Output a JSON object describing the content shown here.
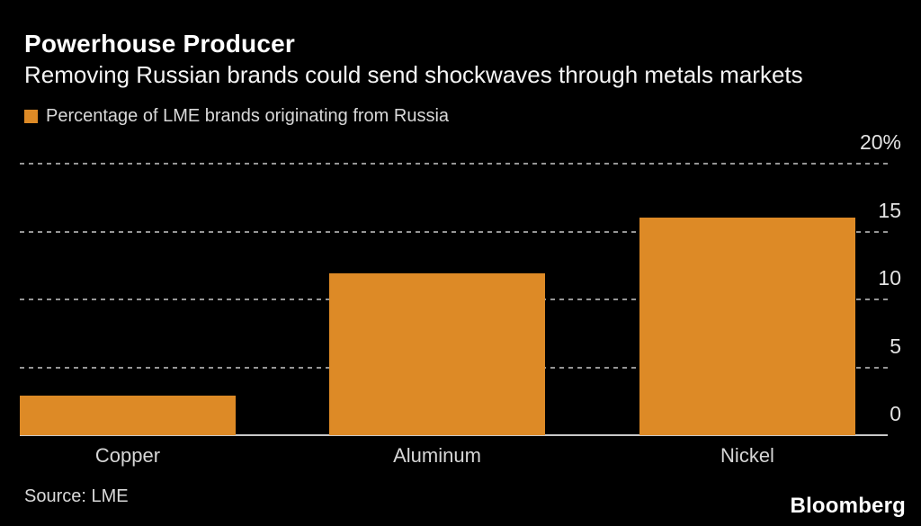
{
  "header": {
    "title": "Powerhouse Producer",
    "subtitle": "Removing Russian brands could send shockwaves through metals markets"
  },
  "legend": {
    "label": "Percentage of LME brands originating from Russia",
    "swatch_color": "#dd8a26"
  },
  "footer": {
    "source": "Source: LME",
    "brand": "Bloomberg"
  },
  "colors": {
    "background": "#000000",
    "bar": "#dd8a26",
    "title_text": "#ffffff",
    "axis_text": "#e3e3e3",
    "gridline": "#969696",
    "baseline": "#c9c9c9"
  },
  "chart_data": {
    "type": "bar",
    "title": "Powerhouse Producer",
    "subtitle": "Removing Russian brands could send shockwaves through metals markets",
    "legend_entries": [
      "Percentage of LME brands originating from Russia"
    ],
    "categories": [
      "Copper",
      "Aluminum",
      "Nickel"
    ],
    "values": [
      2.9,
      11.9,
      16
    ],
    "unit": "%",
    "ylim": [
      0,
      20
    ],
    "yticks": [
      {
        "value": 20,
        "label": "20%"
      },
      {
        "value": 15,
        "label": "15"
      },
      {
        "value": 10,
        "label": "10"
      },
      {
        "value": 5,
        "label": "5"
      },
      {
        "value": 0,
        "label": "0"
      }
    ],
    "grid": "dotted horizontal",
    "legend_position": "top-left",
    "axis_labels_position": "right",
    "source": "Source: LME"
  }
}
